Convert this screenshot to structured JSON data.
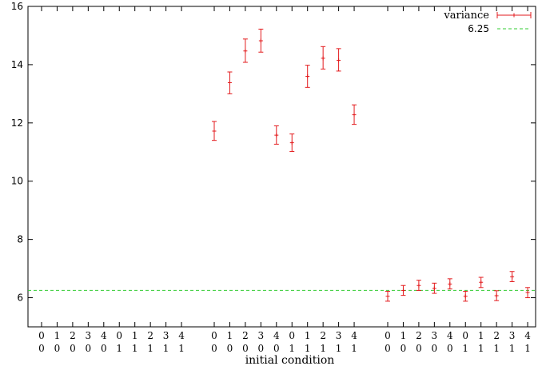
{
  "chart_data": {
    "type": "scatter",
    "xlabel": "initial condition",
    "ylabel": "",
    "ylim": [
      5,
      16
    ],
    "yticks": [
      "6",
      "8",
      "10",
      "12",
      "14",
      "16"
    ],
    "grid": false,
    "legend_placement": "top-right",
    "categories": [
      {
        "top": "0",
        "bottom": "0"
      },
      {
        "top": "1",
        "bottom": "0"
      },
      {
        "top": "2",
        "bottom": "0"
      },
      {
        "top": "3",
        "bottom": "0"
      },
      {
        "top": "4",
        "bottom": "0"
      },
      {
        "top": "0",
        "bottom": "1"
      },
      {
        "top": "1",
        "bottom": "1"
      },
      {
        "top": "2",
        "bottom": "1"
      },
      {
        "top": "3",
        "bottom": "1"
      },
      {
        "top": "4",
        "bottom": "1"
      },
      {
        "top": "0",
        "bottom": "0"
      },
      {
        "top": "1",
        "bottom": "0"
      },
      {
        "top": "2",
        "bottom": "0"
      },
      {
        "top": "3",
        "bottom": "0"
      },
      {
        "top": "4",
        "bottom": "0"
      },
      {
        "top": "0",
        "bottom": "1"
      },
      {
        "top": "1",
        "bottom": "1"
      },
      {
        "top": "2",
        "bottom": "1"
      },
      {
        "top": "3",
        "bottom": "1"
      },
      {
        "top": "4",
        "bottom": "1"
      },
      {
        "top": "0",
        "bottom": "0"
      },
      {
        "top": "1",
        "bottom": "0"
      },
      {
        "top": "2",
        "bottom": "0"
      },
      {
        "top": "3",
        "bottom": "0"
      },
      {
        "top": "4",
        "bottom": "0"
      },
      {
        "top": "0",
        "bottom": "1"
      },
      {
        "top": "1",
        "bottom": "1"
      },
      {
        "top": "2",
        "bottom": "1"
      },
      {
        "top": "3",
        "bottom": "1"
      },
      {
        "top": "4",
        "bottom": "1"
      }
    ],
    "groups": [
      [
        0,
        9
      ],
      [
        10,
        19
      ],
      [
        20,
        29
      ]
    ],
    "series": [
      {
        "name": "variance",
        "color": "#e31a1c",
        "style": "errorbars",
        "points": [
          {
            "i": 10,
            "y": 11.72,
            "low": 11.4,
            "high": 12.05
          },
          {
            "i": 11,
            "y": 13.38,
            "low": 13.0,
            "high": 13.75
          },
          {
            "i": 12,
            "y": 14.47,
            "low": 14.08,
            "high": 14.88
          },
          {
            "i": 13,
            "y": 14.82,
            "low": 14.43,
            "high": 15.22
          },
          {
            "i": 14,
            "y": 11.58,
            "low": 11.27,
            "high": 11.9
          },
          {
            "i": 15,
            "y": 11.32,
            "low": 11.02,
            "high": 11.62
          },
          {
            "i": 16,
            "y": 13.6,
            "low": 13.22,
            "high": 13.98
          },
          {
            "i": 17,
            "y": 14.22,
            "low": 13.85,
            "high": 14.62
          },
          {
            "i": 18,
            "y": 14.15,
            "low": 13.78,
            "high": 14.55
          },
          {
            "i": 19,
            "y": 12.28,
            "low": 11.95,
            "high": 12.62
          },
          {
            "i": 20,
            "y": 6.05,
            "low": 5.88,
            "high": 6.22
          },
          {
            "i": 21,
            "y": 6.25,
            "low": 6.08,
            "high": 6.42
          },
          {
            "i": 22,
            "y": 6.42,
            "low": 6.25,
            "high": 6.6
          },
          {
            "i": 23,
            "y": 6.32,
            "low": 6.15,
            "high": 6.5
          },
          {
            "i": 24,
            "y": 6.47,
            "low": 6.3,
            "high": 6.65
          },
          {
            "i": 25,
            "y": 6.05,
            "low": 5.88,
            "high": 6.22
          },
          {
            "i": 26,
            "y": 6.53,
            "low": 6.35,
            "high": 6.7
          },
          {
            "i": 27,
            "y": 6.07,
            "low": 5.9,
            "high": 6.24
          },
          {
            "i": 28,
            "y": 6.72,
            "low": 6.55,
            "high": 6.9
          },
          {
            "i": 29,
            "y": 6.18,
            "low": 6.0,
            "high": 6.35
          }
        ]
      },
      {
        "name": "6.25",
        "color": "#33cc33",
        "style": "dashed-hline",
        "value": 6.25
      }
    ]
  }
}
